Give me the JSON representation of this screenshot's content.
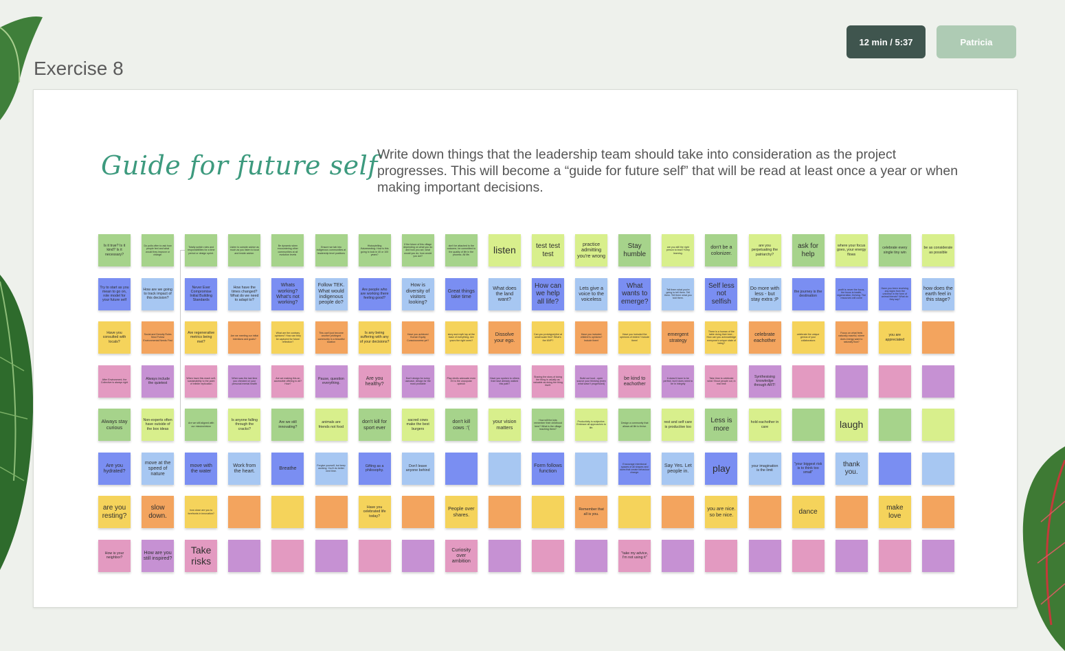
{
  "exercise_title": "Exercise 8",
  "timer": "12 min / 5:37",
  "user": "Patricia",
  "board": {
    "title": "Guide for future self",
    "description": "Write down things that the leadership team should take into consideration as the project progresses. This will become a “guide for future self” that will be read at least once a year or when making important decisions."
  },
  "rows": [
    {
      "color": "g",
      "notes": [
        {
          "t": "Is it true? Is it kind? Is it necessary?",
          "s": "s"
        },
        {
          "t": "Do polls often to ask how people feel and what would they improve or change.",
          "s": "xs"
        },
        {
          "t": "Totally switch roles and responsibilities for a time period or design sprint.",
          "s": "xs"
        },
        {
          "t": "Listen to outside advice as much as you listen to local and inside advice.",
          "s": "xs"
        },
        {
          "t": "Be dynamic when encountering other communities at all evolution levels",
          "s": "xs"
        },
        {
          "t": "Ensure we tab into indigenous communities at leadership level positions",
          "s": "xs"
        },
        {
          "t": "Historytelling /futuresecting: How is this going to look in 40 or 100 years?",
          "s": "xs"
        },
        {
          "t": "If the future of this village depending on what you do and how you act, what would you do, how would you act?",
          "s": "xs"
        },
        {
          "t": "don't be attached to the outcome, be committed to the quality of life in the process. All life.",
          "s": "xs"
        },
        {
          "t": "listen",
          "s": "xl",
          "c": "y"
        },
        {
          "t": "test test test",
          "s": "l",
          "c": "y"
        },
        {
          "t": "practice admitting you're wrong",
          "s": "m",
          "c": "y"
        },
        {
          "t": "Stay humble",
          "s": "l"
        },
        {
          "t": "are you still the right person to lead? Keep learning.",
          "s": "xs",
          "c": "y"
        },
        {
          "t": "don't be a colonizer.",
          "s": "m"
        },
        {
          "t": "are you perpetuating the patriarchy?",
          "s": "s",
          "c": "y"
        },
        {
          "t": "ask for help",
          "s": "l"
        },
        {
          "t": "where your focus goes, your energy flows",
          "s": "s",
          "c": "y"
        },
        {
          "t": "celebrate every single tiny win",
          "s": "s"
        },
        {
          "t": "be as considerate as possible",
          "s": "s",
          "c": "y"
        }
      ]
    },
    {
      "color": "b",
      "notes": [
        {
          "t": "Try to start as you mean to go on, role model for your future self",
          "s": "s"
        },
        {
          "t": "How are we going to track impact of this decision?",
          "s": "s",
          "c": "lb"
        },
        {
          "t": "Never Ever Compromise Initial Building Standards",
          "s": "s"
        },
        {
          "t": "How have the times changed? What do we need to adapt to?",
          "s": "s",
          "c": "lb"
        },
        {
          "t": "Whats working? What's not working?",
          "s": "m"
        },
        {
          "t": "Follow TEK. What would indigenous people do?",
          "s": "m",
          "c": "lb"
        },
        {
          "t": "Are people who are working there feeling good?",
          "s": "s"
        },
        {
          "t": "How is diversity of visitors looking?",
          "s": "m",
          "c": "lb"
        },
        {
          "t": "Great things take time",
          "s": "m"
        },
        {
          "t": "What does the land want?",
          "s": "m",
          "c": "lb"
        },
        {
          "t": "How can we help all life?",
          "s": "l"
        },
        {
          "t": "Lets give a voice to the voiceless",
          "s": "m",
          "c": "lb"
        },
        {
          "t": "What wants to emerge?",
          "s": "l"
        },
        {
          "t": "Tell them what you're going to tell them. Tell them. Tell them what you told them.",
          "s": "xs",
          "c": "lb"
        },
        {
          "t": "Self less not selfish",
          "s": "l"
        },
        {
          "t": "Do more with less - but stay extra ;P",
          "s": "m",
          "c": "lb"
        },
        {
          "t": "the journey is the destination",
          "s": "s"
        },
        {
          "t": "profit is never the focus, the focus is health, regeneration, thriving. The resources will come",
          "s": "xs"
        },
        {
          "t": "Have you been receiving any signs from the universe in the form of animal friends? What do they say?",
          "s": "xs"
        },
        {
          "t": "how does the earth feel in this stage?",
          "s": "m",
          "c": "lb"
        }
      ]
    },
    {
      "color": "yy",
      "notes": [
        {
          "t": "Have you consulted with locals?",
          "s": "s"
        },
        {
          "t": "Social and Density Rules Must Follow Environmental Needs First",
          "s": "xs",
          "c": "o"
        },
        {
          "t": "Are regenerative metrics being met?",
          "s": "s"
        },
        {
          "t": "Are we meeting our initial intentions and goals?",
          "s": "xs",
          "c": "o"
        },
        {
          "t": "What are the contrary opinions? How can they be captured for future reflection?",
          "s": "xs"
        },
        {
          "t": "This can't just become another privileged community in a beautiful location",
          "s": "xs",
          "c": "o"
        },
        {
          "t": "Is any being suffering with any of your decisions?",
          "s": "s"
        },
        {
          "t": "Have you achieved Human Equity Consciousness yet?",
          "s": "xs",
          "c": "o"
        },
        {
          "t": "story and myth lay at the base of everything. Are yours the right ones?",
          "s": "xs"
        },
        {
          "t": "Dissolve your ego.",
          "s": "m",
          "c": "o"
        },
        {
          "t": "Can you prototype/pilot at small scale first? What's the MVP?",
          "s": "xs"
        },
        {
          "t": "Have you included children's opinions? Include them!",
          "s": "xs",
          "c": "o"
        },
        {
          "t": "Have you included the opinions of elders? Include them!",
          "s": "xs"
        },
        {
          "t": "emergent strategy",
          "s": "m",
          "c": "o"
        },
        {
          "t": "There is a human of the table doing their best - How can you acknowledge everyone's unique state of being?",
          "s": "xs"
        },
        {
          "t": "celebrate eachother",
          "s": "m",
          "c": "o"
        },
        {
          "t": "celebrate the unique genius of your collaborators",
          "s": "xs"
        },
        {
          "t": "Focus on what feels naturally easeful, where does energy want to naturally flow?",
          "s": "xs",
          "c": "o"
        },
        {
          "t": "you are appreciated",
          "s": "s"
        },
        {
          "t": "",
          "s": "m",
          "c": "o"
        }
      ]
    },
    {
      "color": "p",
      "notes": [
        {
          "t": "After Environment, the Collective is always right",
          "s": "xs"
        },
        {
          "t": "Always include the quietest",
          "s": "s",
          "c": "v"
        },
        {
          "t": "When have this reach self-sustainability to the point of infinite replication",
          "s": "xs"
        },
        {
          "t": "When was the last time you checked on your personal mental health",
          "s": "xs",
          "c": "v"
        },
        {
          "t": "Are we making this an accessible offering to all? How?",
          "s": "xs"
        },
        {
          "t": "Pause, question everything.",
          "s": "s",
          "c": "v"
        },
        {
          "t": "Are you healthy?",
          "s": "m"
        },
        {
          "t": "Don't design for every usecase, design for the most probable",
          "s": "xs",
          "c": "v"
        },
        {
          "t": "Play devils advocate even if it is the unpopular opinion",
          "s": "xs"
        },
        {
          "t": "Have you spoken to others that have already walked this path?",
          "s": "xs",
          "c": "v"
        },
        {
          "t": "Sharing the story of doing the thing is usually as valuable as doing the thing itself.",
          "s": "xs"
        },
        {
          "t": "Build out loud - open source your thinking (even what wasn't progressed)",
          "s": "xs",
          "c": "v"
        },
        {
          "t": "be kind to eachother",
          "s": "m"
        },
        {
          "t": "It doesn't have to be perfect, but it does need to be in integrity",
          "s": "xs",
          "c": "v"
        },
        {
          "t": "Take time to celebrate wins! Shout people out, in real time",
          "s": "xs"
        },
        {
          "t": "Synthesising knowledge through ART!",
          "s": "s",
          "c": "v"
        },
        {
          "t": "",
          "s": "m"
        },
        {
          "t": "",
          "s": "m",
          "c": "v"
        },
        {
          "t": "",
          "s": "m"
        },
        {
          "t": "",
          "s": "m",
          "c": "v"
        }
      ]
    },
    {
      "color": "g",
      "notes": [
        {
          "t": "Always stay curious",
          "s": "m"
        },
        {
          "t": "Non-experts often have outside of the box ideas",
          "s": "s",
          "c": "y"
        },
        {
          "t": "Are we still aligned with our mission/vision",
          "s": "xs"
        },
        {
          "t": "Is anyone falling through the cracks?",
          "s": "s",
          "c": "y"
        },
        {
          "t": "Are we still innovating?",
          "s": "s"
        },
        {
          "t": "animals are friends not food",
          "s": "s",
          "c": "y"
        },
        {
          "t": "don't kill for sport ever",
          "s": "m"
        },
        {
          "t": "sacred cows make the best burgers",
          "s": "s",
          "c": "y"
        },
        {
          "t": "don't kill cows :'(",
          "s": "m"
        },
        {
          "t": "your vision matters",
          "s": "m",
          "c": "y"
        },
        {
          "t": "How will the kids remember their childhood here? What is the village teaching them?",
          "s": "xs"
        },
        {
          "t": "Productivity is subjective. Embrace all approaches to life.",
          "s": "xs",
          "c": "y"
        },
        {
          "t": "Design a community that allows all life to thrive.",
          "s": "xs"
        },
        {
          "t": "rest and self care is productive too",
          "s": "s",
          "c": "y"
        },
        {
          "t": "Less is more",
          "s": "l"
        },
        {
          "t": "hold eachother in care",
          "s": "s",
          "c": "y"
        },
        {
          "t": "",
          "s": "m"
        },
        {
          "t": "laugh",
          "s": "xl",
          "c": "y"
        },
        {
          "t": "",
          "s": "m"
        },
        {
          "t": "",
          "s": "m",
          "c": "y"
        }
      ]
    },
    {
      "color": "b",
      "notes": [
        {
          "t": "Are you hydrated?",
          "s": "m"
        },
        {
          "t": "move at the speed of nature",
          "s": "m",
          "c": "lb"
        },
        {
          "t": "move with the water",
          "s": "m"
        },
        {
          "t": "Work from the heart.",
          "s": "m",
          "c": "lb"
        },
        {
          "t": "Breathe",
          "s": "m"
        },
        {
          "t": "Forgive yourself, but keep working. You'll do better next time.",
          "s": "xs",
          "c": "lb"
        },
        {
          "t": "Gifting as a philosophy.",
          "s": "s"
        },
        {
          "t": "Don't leave anyone behind",
          "s": "s",
          "c": "lb"
        },
        {
          "t": "",
          "s": "m"
        },
        {
          "t": "",
          "s": "m",
          "c": "lb"
        },
        {
          "t": "Form follows function",
          "s": "m"
        },
        {
          "t": "",
          "s": "m",
          "c": "lb"
        },
        {
          "t": "Encourage intentional spaces of all shapes and sizes that create behaviour change.",
          "s": "xs"
        },
        {
          "t": "Say Yes. Let people in.",
          "s": "m",
          "c": "lb"
        },
        {
          "t": "play",
          "s": "xl"
        },
        {
          "t": "your imagination is the limit",
          "s": "s",
          "c": "lb"
        },
        {
          "t": "\"your biggest risk is to think too small\"",
          "s": "s"
        },
        {
          "t": "thank you.",
          "s": "l",
          "c": "lb"
        },
        {
          "t": "",
          "s": "m"
        },
        {
          "t": "",
          "s": "m",
          "c": "lb"
        }
      ]
    },
    {
      "color": "yy",
      "notes": [
        {
          "t": "are you resting?",
          "s": "l"
        },
        {
          "t": "slow down.",
          "s": "l",
          "c": "o"
        },
        {
          "t": "how close are you to forefronts in innovation?",
          "s": "xs"
        },
        {
          "t": "",
          "s": "m",
          "c": "o"
        },
        {
          "t": "",
          "s": "m"
        },
        {
          "t": "",
          "s": "m",
          "c": "o"
        },
        {
          "t": "Have you celebrated life today?",
          "s": "s"
        },
        {
          "t": "",
          "s": "m",
          "c": "o"
        },
        {
          "t": "People over shares.",
          "s": "m"
        },
        {
          "t": "",
          "s": "m",
          "c": "o"
        },
        {
          "t": "",
          "s": "m"
        },
        {
          "t": "Remember that all is you.",
          "s": "s",
          "c": "o"
        },
        {
          "t": "",
          "s": "m"
        },
        {
          "t": "",
          "s": "m",
          "c": "o"
        },
        {
          "t": "you are nice. so be nice.",
          "s": "m"
        },
        {
          "t": "",
          "s": "m",
          "c": "o"
        },
        {
          "t": "dance",
          "s": "l"
        },
        {
          "t": "",
          "s": "m",
          "c": "o"
        },
        {
          "t": "make love",
          "s": "l"
        },
        {
          "t": "",
          "s": "m",
          "c": "o"
        }
      ]
    },
    {
      "color": "p",
      "notes": [
        {
          "t": "How is your neighbor?",
          "s": "s"
        },
        {
          "t": "How are you still inspired?",
          "s": "m",
          "c": "v"
        },
        {
          "t": "Take risks",
          "s": "xl"
        },
        {
          "t": "",
          "s": "m",
          "c": "v"
        },
        {
          "t": "",
          "s": "m"
        },
        {
          "t": "",
          "s": "m",
          "c": "v"
        },
        {
          "t": "",
          "s": "m"
        },
        {
          "t": "",
          "s": "m",
          "c": "v"
        },
        {
          "t": "Curiosity over ambition",
          "s": "m"
        },
        {
          "t": "",
          "s": "m",
          "c": "v"
        },
        {
          "t": "",
          "s": "m"
        },
        {
          "t": "",
          "s": "m",
          "c": "v"
        },
        {
          "t": "\"take my advice, I'm not using it\"",
          "s": "s"
        },
        {
          "t": "",
          "s": "m",
          "c": "v"
        },
        {
          "t": "",
          "s": "m"
        },
        {
          "t": "",
          "s": "m",
          "c": "v"
        },
        {
          "t": "",
          "s": "m"
        },
        {
          "t": "",
          "s": "m",
          "c": "v"
        },
        {
          "t": "",
          "s": "m"
        },
        {
          "t": "",
          "s": "m",
          "c": "v"
        }
      ]
    }
  ]
}
